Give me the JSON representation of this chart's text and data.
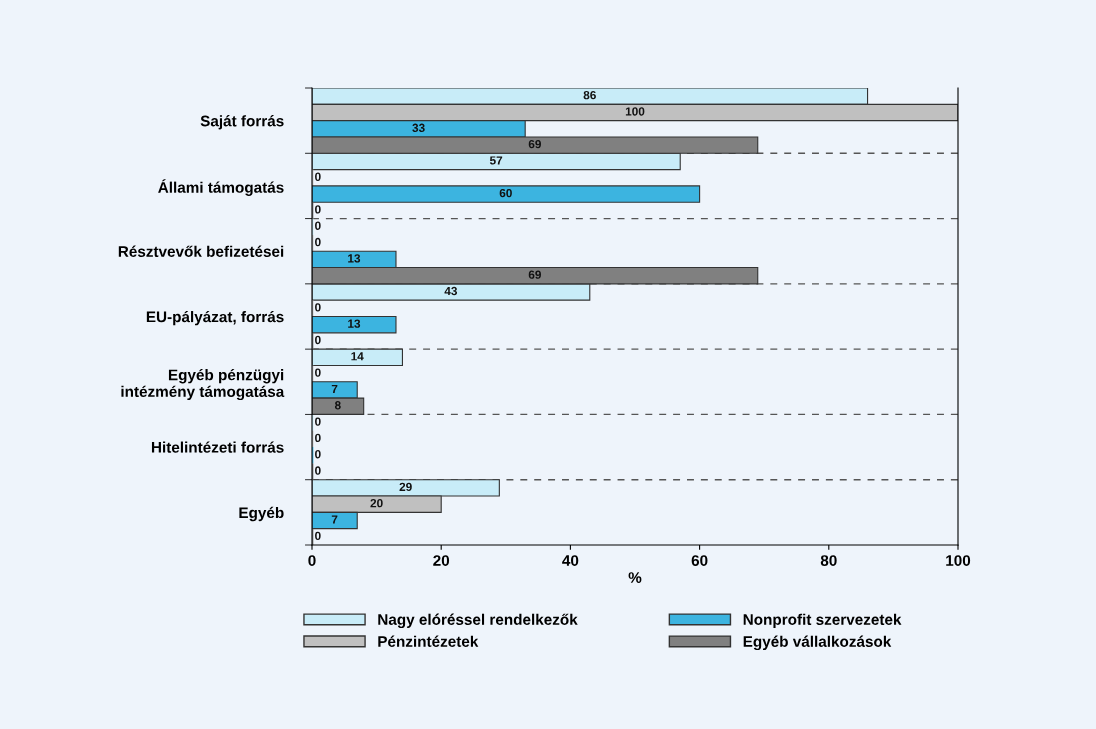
{
  "chart_data": {
    "type": "bar",
    "orientation": "horizontal",
    "xlabel": "%",
    "categories": [
      "Saját forrás",
      "Állami támogatás",
      "Résztvevők befizetései",
      "EU-pályázat, forrás",
      "Egyéb pénzügyi\nintézmény támogatása",
      "Hitelintézeti forrás",
      "Egyéb"
    ],
    "series": [
      {
        "name": "Nagy elóréssel rendelkezők",
        "color": "#c8ecf8",
        "values": [
          86,
          57,
          0,
          43,
          14,
          0,
          29
        ]
      },
      {
        "name": "Pénzintézetek",
        "color": "#c0c0c0",
        "values": [
          100,
          0,
          0,
          0,
          0,
          0,
          20
        ]
      },
      {
        "name": "Nonprofit szervezetek",
        "color": "#3cb4e0",
        "values": [
          33,
          60,
          13,
          13,
          7,
          0,
          7
        ]
      },
      {
        "name": "Egyéb vállalkozások",
        "color": "#808080",
        "values": [
          69,
          0,
          69,
          0,
          8,
          0,
          0
        ]
      }
    ],
    "xlim": [
      0,
      100
    ],
    "xticks": [
      0,
      20,
      40,
      60,
      80,
      100
    ],
    "grid": "y",
    "legend": "bottom",
    "data_labels": true
  }
}
